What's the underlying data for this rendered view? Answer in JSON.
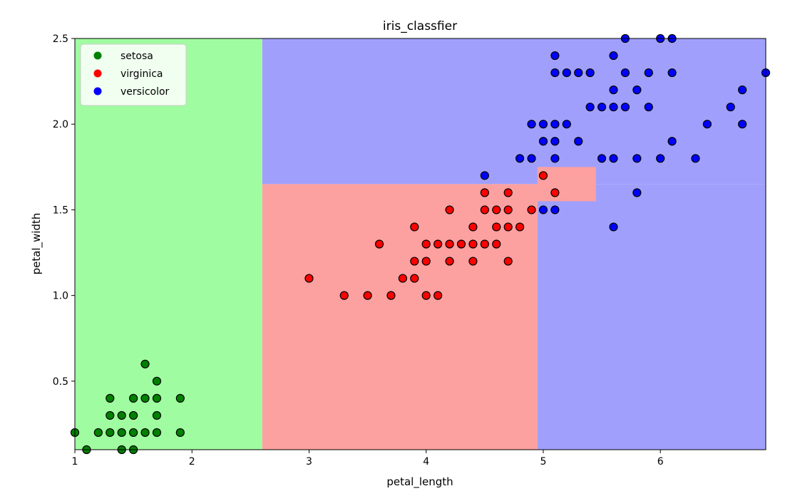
{
  "chart_data": {
    "type": "scatter",
    "title": "iris_classfier",
    "xlabel": "petal_length",
    "ylabel": "petal_width",
    "xlim": [
      1.0,
      6.9
    ],
    "ylim": [
      0.1,
      2.5
    ],
    "xticks": [
      1,
      2,
      3,
      4,
      5,
      6
    ],
    "yticks": [
      0.5,
      1.0,
      1.5,
      2.0,
      2.5
    ],
    "xtick_labels": [
      "1",
      "2",
      "3",
      "4",
      "5",
      "6"
    ],
    "ytick_labels": [
      "0.5",
      "1.0",
      "1.5",
      "2.0",
      "2.5"
    ],
    "grid": false,
    "legend_position": "top-left",
    "regions": [
      {
        "class": "setosa",
        "color": "#a0fca0",
        "x": [
          1.0,
          2.6
        ],
        "y": [
          0.1,
          2.5
        ]
      },
      {
        "class": "versicolor",
        "color": "#a0a0fc",
        "x": [
          2.6,
          6.9
        ],
        "y": [
          1.65,
          2.5
        ]
      },
      {
        "class": "virginica",
        "color": "#fca0a0",
        "x": [
          2.6,
          4.95
        ],
        "y": [
          0.1,
          1.65
        ]
      },
      {
        "class": "versicolor",
        "color": "#a0a0fc",
        "x": [
          4.95,
          6.9
        ],
        "y": [
          0.1,
          1.65
        ]
      },
      {
        "class": "virginica",
        "color": "#fca0a0",
        "x": [
          4.95,
          5.45
        ],
        "y": [
          1.55,
          1.75
        ]
      }
    ],
    "series": [
      {
        "name": "setosa",
        "color": "#008000",
        "points": [
          [
            1.0,
            0.2
          ],
          [
            1.1,
            0.1
          ],
          [
            1.2,
            0.2
          ],
          [
            1.3,
            0.2
          ],
          [
            1.3,
            0.3
          ],
          [
            1.3,
            0.4
          ],
          [
            1.4,
            0.1
          ],
          [
            1.4,
            0.2
          ],
          [
            1.4,
            0.3
          ],
          [
            1.5,
            0.1
          ],
          [
            1.5,
            0.2
          ],
          [
            1.5,
            0.3
          ],
          [
            1.5,
            0.4
          ],
          [
            1.6,
            0.2
          ],
          [
            1.6,
            0.4
          ],
          [
            1.6,
            0.6
          ],
          [
            1.7,
            0.2
          ],
          [
            1.7,
            0.3
          ],
          [
            1.7,
            0.4
          ],
          [
            1.7,
            0.5
          ],
          [
            1.9,
            0.2
          ],
          [
            1.9,
            0.4
          ]
        ]
      },
      {
        "name": "virginica",
        "color": "#ff0000",
        "points": [
          [
            3.0,
            1.1
          ],
          [
            3.3,
            1.0
          ],
          [
            3.5,
            1.0
          ],
          [
            3.6,
            1.3
          ],
          [
            3.7,
            1.0
          ],
          [
            3.8,
            1.1
          ],
          [
            3.9,
            1.1
          ],
          [
            3.9,
            1.2
          ],
          [
            3.9,
            1.4
          ],
          [
            4.0,
            1.0
          ],
          [
            4.0,
            1.2
          ],
          [
            4.0,
            1.3
          ],
          [
            4.1,
            1.0
          ],
          [
            4.1,
            1.3
          ],
          [
            4.2,
            1.2
          ],
          [
            4.2,
            1.3
          ],
          [
            4.2,
            1.5
          ],
          [
            4.3,
            1.3
          ],
          [
            4.4,
            1.2
          ],
          [
            4.4,
            1.3
          ],
          [
            4.4,
            1.4
          ],
          [
            4.5,
            1.3
          ],
          [
            4.5,
            1.5
          ],
          [
            4.5,
            1.6
          ],
          [
            4.6,
            1.3
          ],
          [
            4.6,
            1.4
          ],
          [
            4.6,
            1.5
          ],
          [
            4.7,
            1.2
          ],
          [
            4.7,
            1.4
          ],
          [
            4.7,
            1.5
          ],
          [
            4.7,
            1.6
          ],
          [
            4.8,
            1.4
          ],
          [
            4.9,
            1.5
          ],
          [
            5.0,
            1.7
          ],
          [
            5.1,
            1.6
          ]
        ]
      },
      {
        "name": "versicolor",
        "color": "#0000ff",
        "points": [
          [
            4.5,
            1.7
          ],
          [
            4.8,
            1.8
          ],
          [
            4.9,
            1.8
          ],
          [
            4.9,
            2.0
          ],
          [
            5.0,
            1.5
          ],
          [
            5.0,
            1.9
          ],
          [
            5.0,
            2.0
          ],
          [
            5.1,
            1.5
          ],
          [
            5.1,
            1.8
          ],
          [
            5.1,
            1.9
          ],
          [
            5.1,
            2.0
          ],
          [
            5.1,
            2.3
          ],
          [
            5.1,
            2.4
          ],
          [
            5.2,
            2.0
          ],
          [
            5.2,
            2.3
          ],
          [
            5.3,
            1.9
          ],
          [
            5.3,
            2.3
          ],
          [
            5.4,
            2.1
          ],
          [
            5.4,
            2.3
          ],
          [
            5.5,
            1.8
          ],
          [
            5.5,
            2.1
          ],
          [
            5.6,
            1.4
          ],
          [
            5.6,
            1.8
          ],
          [
            5.6,
            2.1
          ],
          [
            5.6,
            2.2
          ],
          [
            5.6,
            2.4
          ],
          [
            5.7,
            2.1
          ],
          [
            5.7,
            2.3
          ],
          [
            5.7,
            2.5
          ],
          [
            5.8,
            1.6
          ],
          [
            5.8,
            1.8
          ],
          [
            5.8,
            2.2
          ],
          [
            5.9,
            2.1
          ],
          [
            5.9,
            2.3
          ],
          [
            6.0,
            1.8
          ],
          [
            6.0,
            2.5
          ],
          [
            6.1,
            1.9
          ],
          [
            6.1,
            2.3
          ],
          [
            6.1,
            2.5
          ],
          [
            6.3,
            1.8
          ],
          [
            6.4,
            2.0
          ],
          [
            6.6,
            2.1
          ],
          [
            6.7,
            2.0
          ],
          [
            6.7,
            2.2
          ],
          [
            6.9,
            2.3
          ]
        ]
      }
    ]
  }
}
